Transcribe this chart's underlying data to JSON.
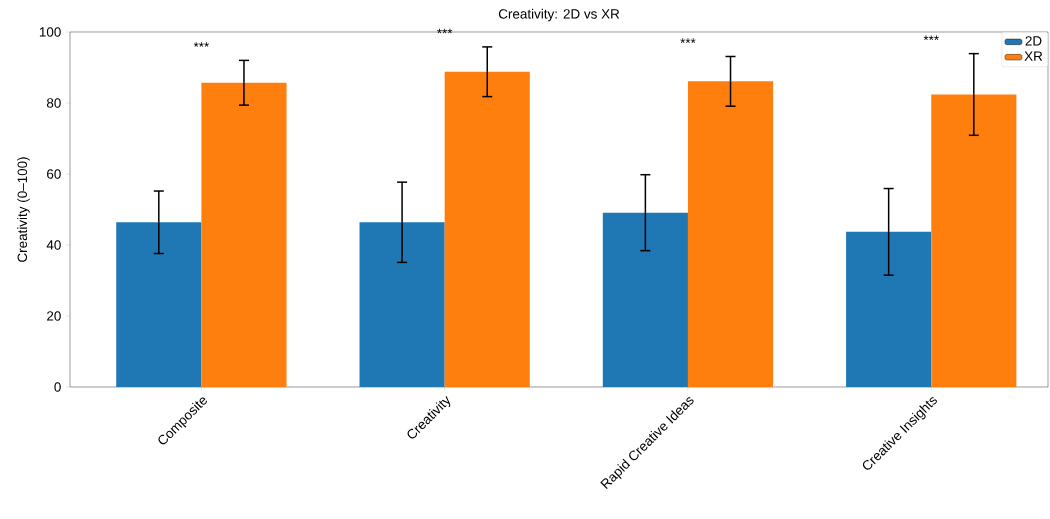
{
  "chart_data": {
    "type": "bar",
    "title": "Creativity: 2D vs XR",
    "ylabel": "Creativity (0–100)",
    "categories": [
      "Composite",
      "Creativity",
      "Rapid Creative Ideas",
      "Creative Insights"
    ],
    "series": [
      {
        "name": "2D",
        "color": "#1f77b4",
        "values": [
          46.4,
          46.4,
          49.1,
          43.7
        ],
        "errors": [
          8.8,
          11.3,
          10.7,
          12.2
        ]
      },
      {
        "name": "XR",
        "color": "#ff7f0e",
        "values": [
          85.7,
          88.8,
          86.1,
          82.4
        ],
        "errors": [
          6.3,
          7.0,
          7.0,
          11.5
        ]
      }
    ],
    "annotations": [
      "***",
      "***",
      "***",
      "***"
    ],
    "ylim": [
      0,
      100
    ],
    "yticks": [
      0,
      20,
      40,
      60,
      80,
      100
    ],
    "grid": false,
    "legend": "top right"
  }
}
